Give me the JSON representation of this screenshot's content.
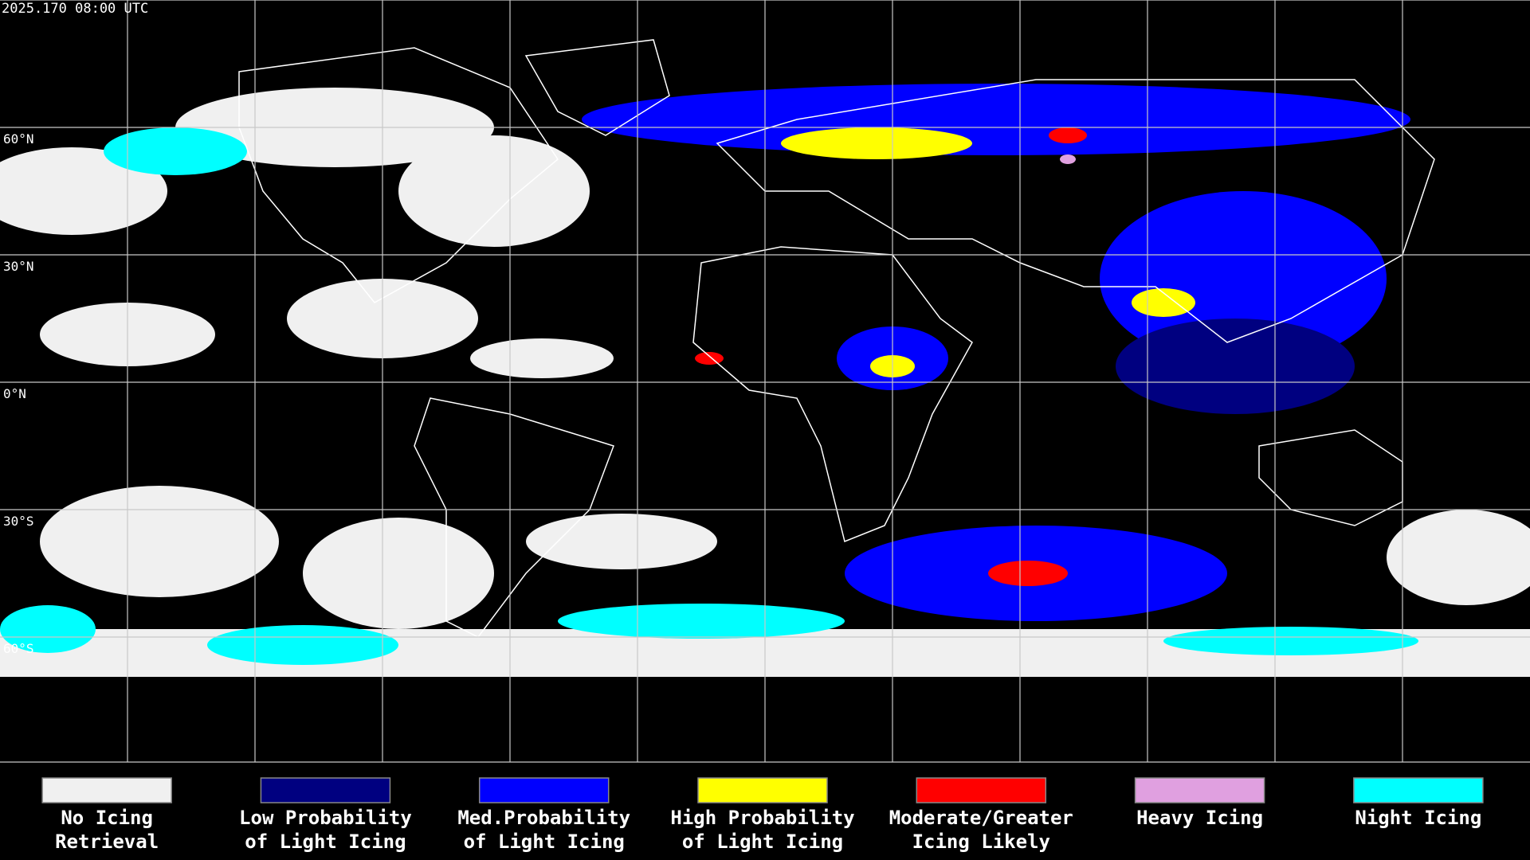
{
  "timestamp": "2025.170 08:00 UTC",
  "latitude_labels": [
    "60°N",
    "30°N",
    "0°N",
    "30°S",
    "60°S"
  ],
  "legend": [
    {
      "color": "#f0f0f0",
      "lines": [
        "No Icing",
        "Retrieval"
      ]
    },
    {
      "color": "#000080",
      "lines": [
        "Low Probability",
        "of Light Icing"
      ]
    },
    {
      "color": "#0000ff",
      "lines": [
        "Med.Probability",
        "of Light Icing"
      ]
    },
    {
      "color": "#ffff00",
      "lines": [
        "High Probability",
        "of Light Icing"
      ]
    },
    {
      "color": "#ff0000",
      "lines": [
        "Moderate/Greater",
        "Icing Likely"
      ]
    },
    {
      "color": "#e0a0e0",
      "lines": [
        "Heavy Icing"
      ]
    },
    {
      "color": "#00ffff",
      "lines": [
        "Night Icing"
      ]
    }
  ]
}
